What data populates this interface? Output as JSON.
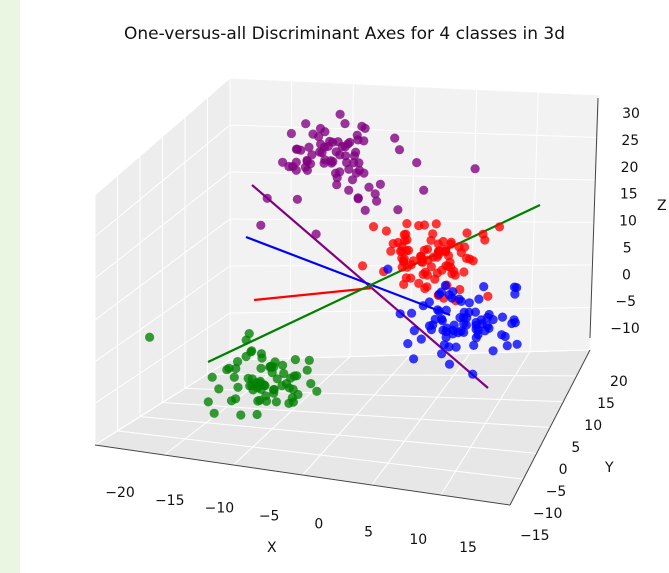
{
  "chart_data": {
    "type": "scatter",
    "projection": "3d",
    "title": "One-versus-all Discriminant Axes for 4 classes in 3d",
    "xlabel": "X",
    "ylabel": "Y",
    "zlabel": "Z",
    "xlim": [
      -20,
      15
    ],
    "ylim": [
      -15,
      20
    ],
    "zlim": [
      -10,
      30
    ],
    "x_ticks": [
      "-20",
      "-15",
      "-10",
      "-5",
      "0",
      "5",
      "10",
      "15"
    ],
    "y_ticks": [
      "-15",
      "-10",
      "-5",
      "0",
      "5",
      "10",
      "15",
      "20"
    ],
    "z_ticks": [
      "-10",
      "-5",
      "0",
      "5",
      "10",
      "15",
      "20",
      "25",
      "30"
    ],
    "grid": true,
    "series": [
      {
        "color": "#800080",
        "center": [
          -8,
          10,
          22
        ],
        "spread": 4,
        "n": 80
      },
      {
        "color": "#ff0000",
        "center": [
          5,
          5,
          8
        ],
        "spread": 3.5,
        "n": 90
      },
      {
        "color": "#0000ff",
        "center": [
          10,
          5,
          -5
        ],
        "spread": 3.5,
        "n": 80
      },
      {
        "color": "#008000",
        "center": [
          -12,
          -8,
          -8
        ],
        "spread": 3,
        "n": 70
      }
    ],
    "axes_lines": [
      {
        "color": "#800080"
      },
      {
        "color": "#ff0000"
      },
      {
        "color": "#0000ff"
      },
      {
        "color": "#008000"
      }
    ]
  }
}
